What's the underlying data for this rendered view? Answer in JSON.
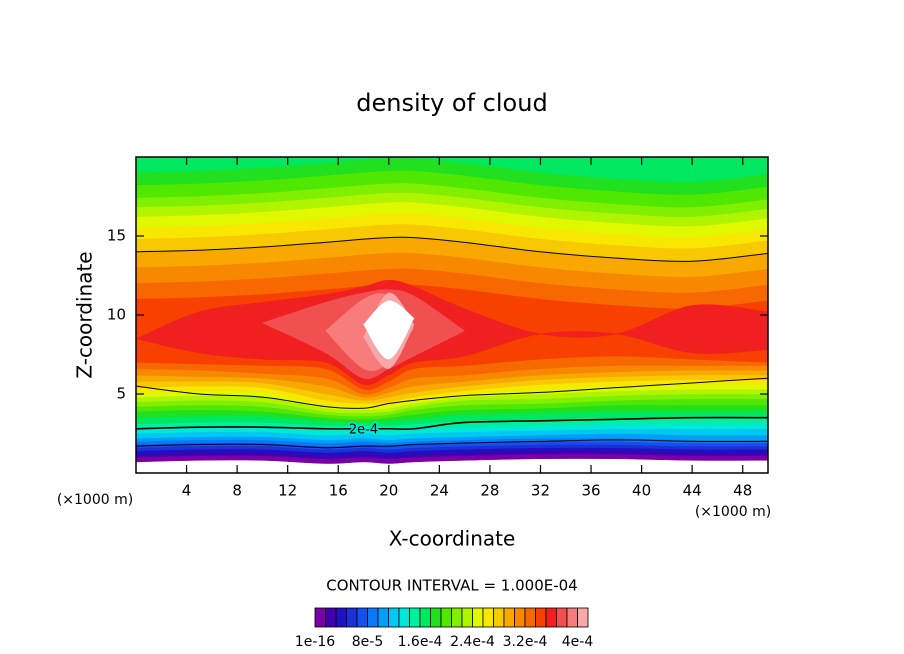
{
  "chart_data": {
    "type": "contour",
    "title": "density of cloud",
    "x_label": "X-coordinate",
    "y_label": "Z-coordinate",
    "x_unit": "(×1000 m)",
    "y_unit": "(×1000 m)",
    "xlim": [
      0,
      50
    ],
    "ylim": [
      0,
      20
    ],
    "xticks": [
      4,
      8,
      12,
      16,
      20,
      24,
      28,
      32,
      36,
      40,
      44,
      48
    ],
    "yticks": [
      5,
      10,
      15
    ],
    "x": [
      0,
      5,
      10,
      15,
      18,
      20,
      22,
      26,
      32,
      38,
      44,
      50
    ],
    "filled": [
      {
        "level": 1e-16,
        "color": "#7b00a8",
        "lower": [
          0.7,
          0.8,
          0.8,
          0.6,
          0.7,
          0.6,
          0.7,
          0.8,
          0.9,
          0.9,
          0.8,
          0.8
        ]
      },
      {
        "level": 1.6e-05,
        "color": "#4000b0",
        "lower": [
          1.0,
          1.1,
          1.1,
          0.9,
          1.0,
          0.9,
          1.0,
          1.1,
          1.2,
          1.2,
          1.1,
          1.1
        ]
      },
      {
        "level": 3.2e-05,
        "color": "#2010c0",
        "lower": [
          1.2,
          1.3,
          1.3,
          1.1,
          1.2,
          1.1,
          1.2,
          1.3,
          1.4,
          1.4,
          1.3,
          1.3
        ]
      },
      {
        "level": 4.8e-05,
        "color": "#1c30d8",
        "lower": [
          1.4,
          1.5,
          1.5,
          1.3,
          1.4,
          1.3,
          1.4,
          1.5,
          1.6,
          1.6,
          1.5,
          1.5
        ]
      },
      {
        "level": 6.4e-05,
        "color": "#1450f0",
        "lower": [
          1.6,
          1.7,
          1.7,
          1.5,
          1.6,
          1.5,
          1.6,
          1.7,
          1.8,
          1.8,
          1.7,
          1.7
        ]
      },
      {
        "level": 8e-05,
        "color": "#0a78f8",
        "lower": [
          1.8,
          1.9,
          1.9,
          1.7,
          1.8,
          1.7,
          1.8,
          1.9,
          2.0,
          2.0,
          1.9,
          1.9
        ]
      },
      {
        "level": 9.6e-05,
        "color": "#00a0f8",
        "lower": [
          2.0,
          2.1,
          2.1,
          1.9,
          2.0,
          1.9,
          2.0,
          2.1,
          2.2,
          2.2,
          2.1,
          2.1
        ]
      },
      {
        "level": 0.000112,
        "color": "#00c8f0",
        "lower": [
          2.2,
          2.3,
          2.3,
          2.1,
          2.2,
          2.1,
          2.2,
          2.3,
          2.4,
          2.5,
          2.4,
          2.4
        ]
      },
      {
        "level": 0.000128,
        "color": "#00e8d8",
        "lower": [
          2.5,
          2.6,
          2.6,
          2.4,
          2.5,
          2.4,
          2.5,
          2.6,
          2.7,
          2.8,
          2.8,
          2.8
        ]
      },
      {
        "level": 0.000144,
        "color": "#00f0a0",
        "lower": [
          2.8,
          2.9,
          2.9,
          2.7,
          2.8,
          2.7,
          2.8,
          2.9,
          3.0,
          3.1,
          3.1,
          3.1
        ]
      },
      {
        "level": 0.00016,
        "color": "#00e860",
        "lower": [
          3.1,
          3.2,
          3.2,
          3.0,
          3.0,
          3.0,
          3.1,
          3.3,
          3.4,
          3.5,
          3.5,
          3.5
        ]
      },
      {
        "level": 0.000176,
        "color": "#20e020",
        "lower": [
          3.5,
          3.6,
          3.6,
          3.3,
          3.2,
          3.3,
          3.4,
          3.7,
          3.8,
          3.9,
          3.9,
          3.9
        ],
        "upper": [
          19.0,
          19.1,
          19.3,
          19.6,
          19.8,
          19.9,
          19.9,
          19.6,
          19.0,
          18.6,
          18.4,
          18.9
        ]
      },
      {
        "level": 0.000192,
        "color": "#50e800",
        "lower": [
          3.9,
          4.0,
          3.9,
          3.5,
          3.4,
          3.5,
          3.7,
          4.0,
          4.1,
          4.3,
          4.3,
          4.3
        ],
        "upper": [
          18.2,
          18.3,
          18.5,
          18.8,
          19.0,
          19.1,
          19.1,
          18.8,
          18.2,
          17.8,
          17.6,
          18.1
        ]
      },
      {
        "level": 0.000208,
        "color": "#80f000",
        "lower": [
          4.2,
          4.3,
          4.2,
          3.7,
          3.6,
          3.7,
          4.0,
          4.3,
          4.4,
          4.6,
          4.7,
          4.7
        ],
        "upper": [
          17.4,
          17.5,
          17.7,
          18.0,
          18.2,
          18.3,
          18.3,
          18.0,
          17.4,
          17.0,
          16.8,
          17.3
        ]
      },
      {
        "level": 0.000224,
        "color": "#b0f400",
        "lower": [
          4.5,
          4.6,
          4.5,
          3.9,
          3.8,
          3.9,
          4.2,
          4.6,
          4.7,
          4.9,
          5.0,
          5.0
        ],
        "upper": [
          16.8,
          16.9,
          17.1,
          17.4,
          17.6,
          17.7,
          17.7,
          17.4,
          16.8,
          16.4,
          16.2,
          16.7
        ]
      },
      {
        "level": 0.00024,
        "color": "#e0f800",
        "lower": [
          4.8,
          4.9,
          4.8,
          4.1,
          4.0,
          4.1,
          4.4,
          4.8,
          5.0,
          5.2,
          5.3,
          5.3
        ],
        "upper": [
          16.2,
          16.3,
          16.5,
          16.8,
          17.0,
          17.1,
          17.1,
          16.8,
          16.2,
          15.8,
          15.6,
          16.1
        ]
      },
      {
        "level": 0.000256,
        "color": "#f8e800",
        "lower": [
          5.1,
          5.2,
          5.1,
          4.3,
          4.2,
          4.3,
          4.6,
          5.0,
          5.3,
          5.5,
          5.6,
          5.6
        ],
        "upper": [
          15.5,
          15.6,
          15.8,
          16.1,
          16.3,
          16.4,
          16.4,
          16.1,
          15.5,
          15.1,
          14.9,
          15.4
        ]
      },
      {
        "level": 0.000272,
        "color": "#f8c800",
        "lower": [
          5.4,
          5.5,
          5.4,
          4.6,
          4.4,
          4.5,
          4.8,
          5.2,
          5.6,
          5.8,
          5.9,
          5.9
        ],
        "upper": [
          14.8,
          14.9,
          15.1,
          15.4,
          15.6,
          15.7,
          15.7,
          15.4,
          14.8,
          14.4,
          14.2,
          14.7
        ]
      },
      {
        "level": 0.000288,
        "color": "#f8a800",
        "lower": [
          5.8,
          5.8,
          5.7,
          5.0,
          4.6,
          4.8,
          5.1,
          5.5,
          5.9,
          6.1,
          6.2,
          6.2
        ],
        "upper": [
          14.0,
          14.1,
          14.3,
          14.6,
          14.8,
          14.9,
          14.9,
          14.6,
          14.0,
          13.6,
          13.4,
          13.9
        ]
      },
      {
        "level": 0.000304,
        "color": "#f88800",
        "lower": [
          6.2,
          6.1,
          6.0,
          5.5,
          4.8,
          5.1,
          5.5,
          5.8,
          6.2,
          6.4,
          6.5,
          6.5
        ],
        "upper": [
          13.0,
          13.1,
          13.3,
          13.6,
          13.8,
          13.9,
          13.9,
          13.6,
          13.0,
          12.6,
          12.4,
          12.9
        ]
      },
      {
        "level": 0.00032,
        "color": "#f86800",
        "lower": [
          6.6,
          6.5,
          6.3,
          6.0,
          5.0,
          5.4,
          6.0,
          6.2,
          6.6,
          6.8,
          6.8,
          6.8
        ],
        "upper": [
          12.0,
          12.1,
          12.3,
          12.6,
          12.8,
          12.9,
          12.9,
          12.6,
          12.0,
          11.6,
          11.4,
          11.9
        ]
      },
      {
        "level": 0.000336,
        "color": "#f84000",
        "lower": [
          7.0,
          6.9,
          6.8,
          6.6,
          5.3,
          5.8,
          6.6,
          6.8,
          7.2,
          7.4,
          7.2,
          7.0
        ],
        "upper": [
          11.0,
          11.1,
          11.3,
          11.6,
          11.8,
          11.9,
          11.9,
          11.6,
          11.0,
          10.6,
          10.4,
          10.9
        ]
      },
      {
        "level": 0.000352,
        "color": "#f02020",
        "lower": [
          8.5,
          7.6,
          7.2,
          7.0,
          5.6,
          6.2,
          7.0,
          7.4,
          8.8,
          8.8,
          7.6,
          7.8
        ],
        "upper": [
          8.5,
          10.2,
          10.8,
          11.3,
          11.8,
          12.2,
          11.8,
          10.4,
          8.8,
          8.8,
          10.6,
          10.2
        ]
      },
      {
        "level": 0.000368,
        "color": "#f05050",
        "lower": [
          null,
          null,
          9.5,
          7.6,
          6.0,
          6.6,
          7.4,
          9.0,
          null,
          null,
          null,
          null
        ],
        "upper": [
          null,
          null,
          9.5,
          10.8,
          11.4,
          11.6,
          11.2,
          9.0,
          null,
          null,
          null,
          null
        ]
      },
      {
        "level": 0.000384,
        "color": "#f87c7c",
        "lower": [
          null,
          null,
          null,
          9.0,
          6.6,
          7.0,
          9.2,
          null,
          null,
          null,
          null,
          null
        ],
        "upper": [
          null,
          null,
          null,
          9.0,
          11.0,
          11.2,
          9.2,
          null,
          null,
          null,
          null,
          null
        ]
      },
      {
        "level": 0.0004,
        "color": "#f8a8a8",
        "lower": [
          null,
          null,
          null,
          null,
          8.6,
          6.6,
          9.4,
          null,
          null,
          null,
          null,
          null
        ],
        "upper": [
          null,
          null,
          null,
          null,
          8.6,
          11.4,
          9.4,
          null,
          null,
          null,
          null,
          null
        ]
      },
      {
        "level": 0.000416,
        "color": "#ffffff",
        "lower": [
          null,
          null,
          null,
          null,
          9.4,
          7.2,
          9.8,
          null,
          null,
          null,
          null,
          null
        ],
        "upper": [
          null,
          null,
          null,
          null,
          9.4,
          10.9,
          9.8,
          null,
          null,
          null,
          null,
          null
        ]
      }
    ],
    "contour_lines": [
      {
        "z": [
          14.0,
          14.1,
          14.3,
          14.6,
          14.8,
          14.9,
          14.9,
          14.6,
          14.0,
          13.6,
          13.4,
          13.9
        ]
      },
      {
        "z": [
          5.5,
          5.0,
          4.8,
          4.2,
          4.1,
          4.4,
          4.6,
          4.9,
          5.1,
          5.4,
          5.7,
          6.0
        ]
      },
      {
        "z": [
          2.8,
          2.9,
          2.9,
          2.8,
          2.8,
          2.8,
          2.8,
          3.2,
          3.3,
          3.4,
          3.5,
          3.5
        ],
        "label": "2e-4"
      },
      {
        "z": [
          1.7,
          1.8,
          1.8,
          1.6,
          1.7,
          1.7,
          1.8,
          1.9,
          2.0,
          2.1,
          2.0,
          2.0
        ]
      }
    ],
    "contour_interval_text": "CONTOUR INTERVAL = 1.000E-04",
    "colorbar": {
      "colors": [
        "#7b00a8",
        "#4000b0",
        "#2010c0",
        "#1c30d8",
        "#1450f0",
        "#0a78f8",
        "#00a0f8",
        "#00c8f0",
        "#00e8d8",
        "#00f0a0",
        "#00e860",
        "#20e020",
        "#50e800",
        "#80f000",
        "#b0f400",
        "#e0f800",
        "#f8e800",
        "#f8c800",
        "#f8a800",
        "#f88800",
        "#f86800",
        "#f84000",
        "#f02020",
        "#f05050",
        "#f87c7c",
        "#f8a8a8"
      ],
      "lim": [
        0,
        0.000416
      ],
      "ticks": [
        {
          "value": 1e-16,
          "label": "1e-16"
        },
        {
          "value": 8e-05,
          "label": "8e-5"
        },
        {
          "value": 0.00016,
          "label": "1.6e-4"
        },
        {
          "value": 0.00024,
          "label": "2.4e-4"
        },
        {
          "value": 0.00032,
          "label": "3.2e-4"
        },
        {
          "value": 0.0004,
          "label": "4e-4"
        }
      ]
    }
  }
}
